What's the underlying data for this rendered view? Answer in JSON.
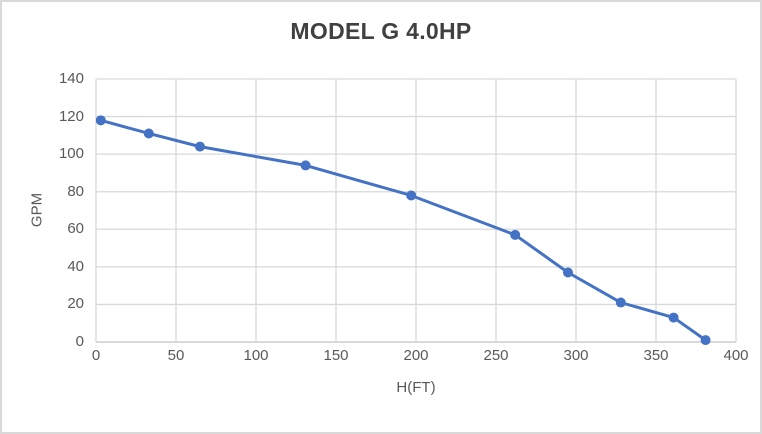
{
  "chart_data": {
    "type": "line",
    "title": "MODEL G 4.0HP",
    "xlabel": "H(FT)",
    "ylabel": "GPM",
    "x": [
      3,
      33,
      65,
      131,
      197,
      262,
      295,
      328,
      361,
      381
    ],
    "y": [
      118,
      111,
      104,
      94,
      78,
      57,
      37,
      21,
      13,
      1
    ],
    "xlim": [
      0,
      400
    ],
    "ylim": [
      0,
      140
    ],
    "xticks": [
      0,
      50,
      100,
      150,
      200,
      250,
      300,
      350,
      400
    ],
    "yticks": [
      0,
      20,
      40,
      60,
      80,
      100,
      120,
      140
    ],
    "grid": true,
    "legend": "none",
    "series_color": "#4472c4",
    "gridline_color": "#d9d9d9",
    "axis_line_color": "#d9d9d9",
    "tick_label_color": "#595959",
    "axis_title_color": "#595959",
    "title_color": "#404040",
    "background_color": "#ffffff",
    "border_color": "#d9d9d9"
  }
}
